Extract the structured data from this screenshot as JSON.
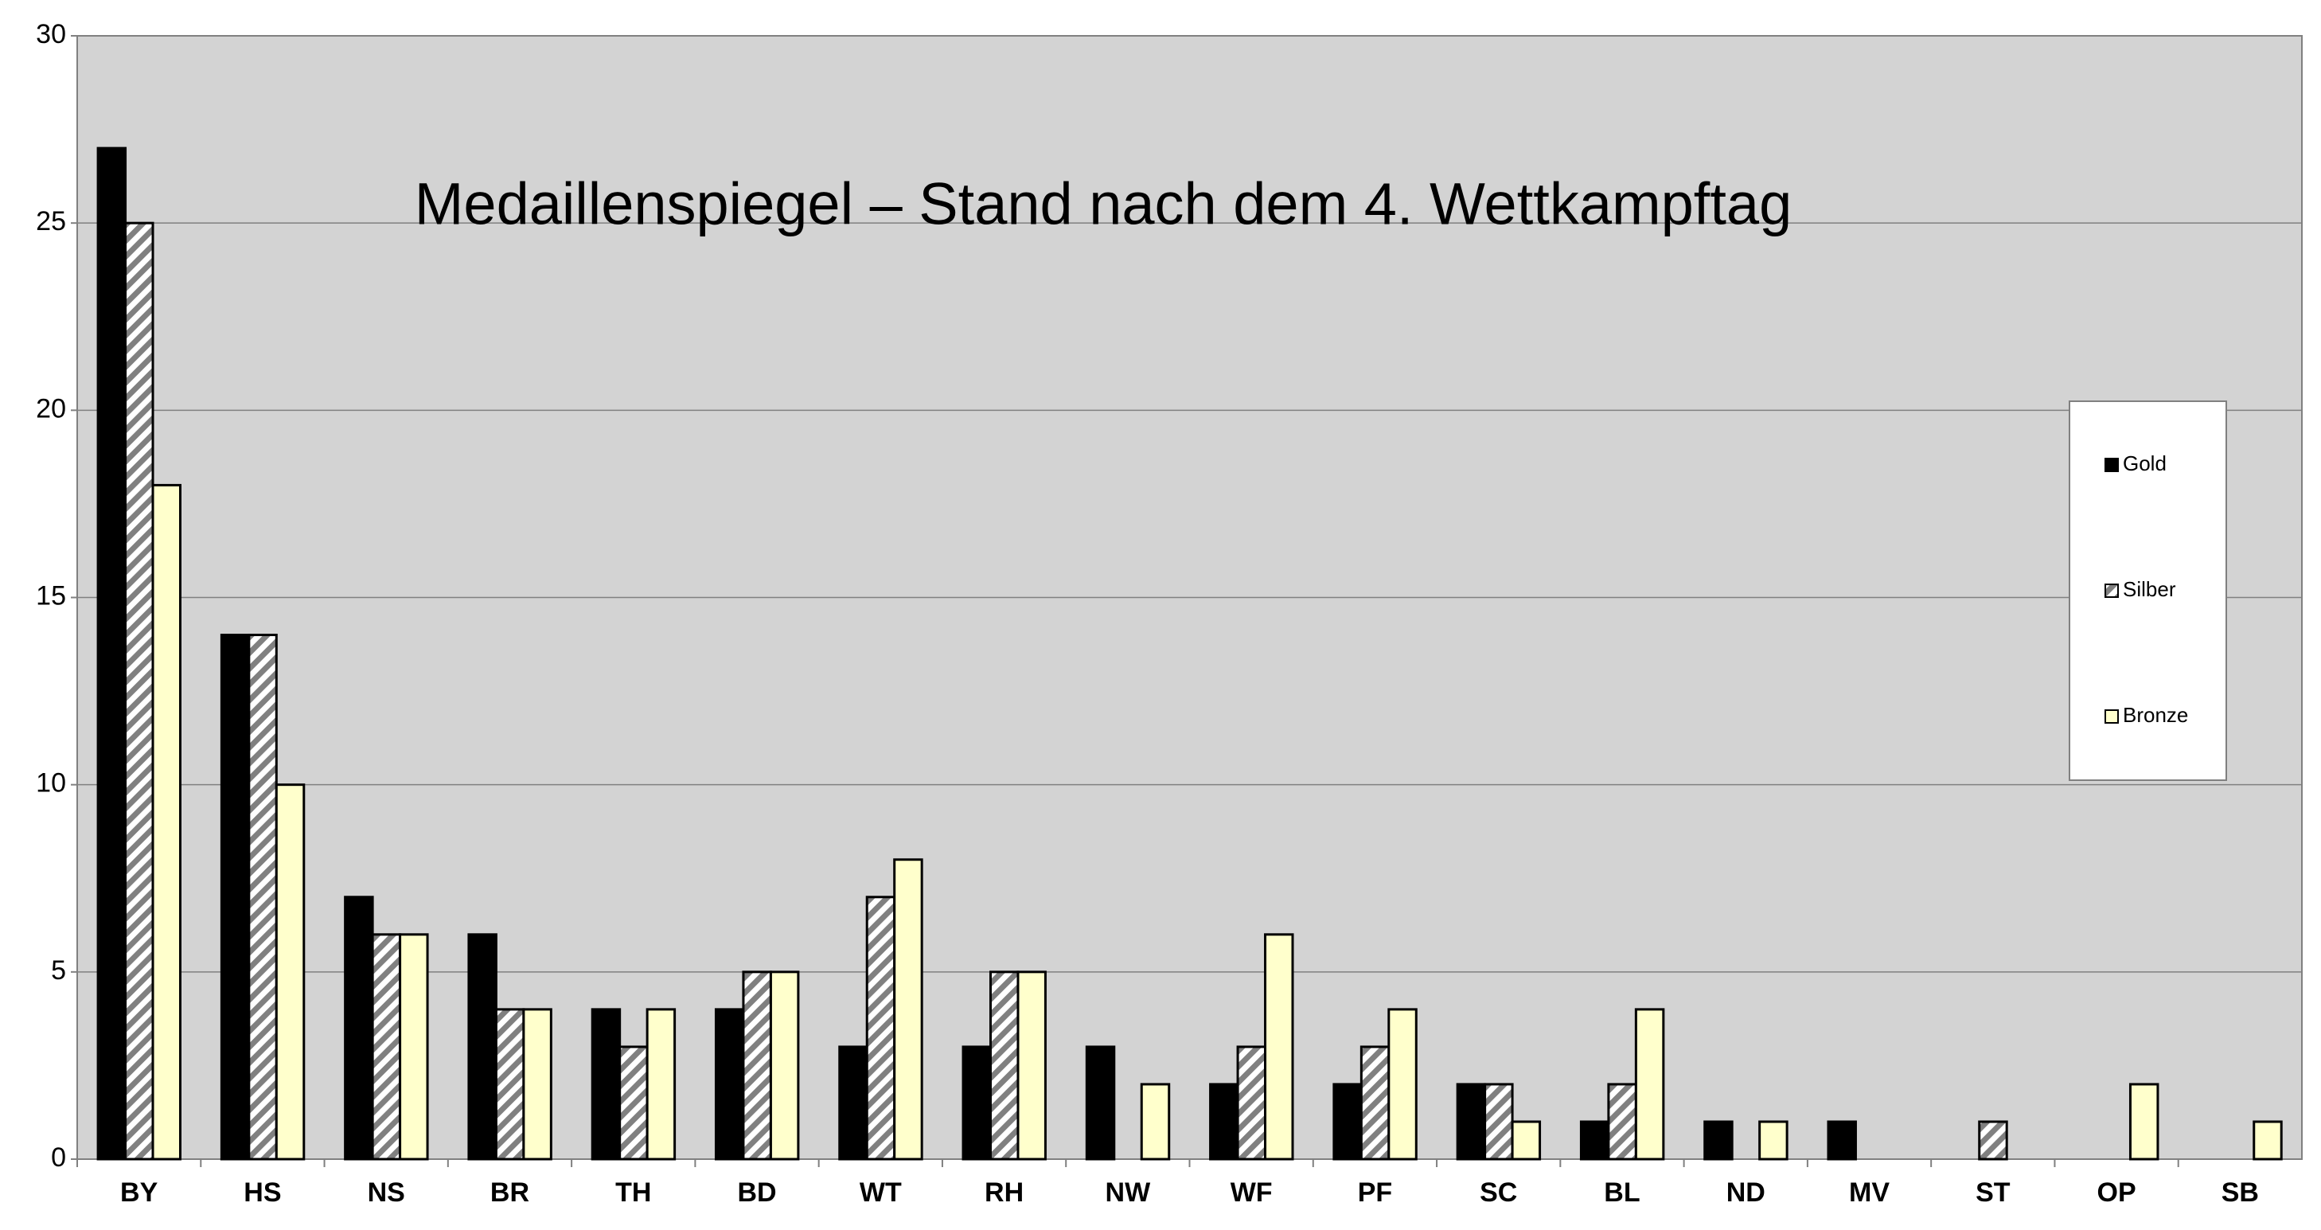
{
  "chart_data": {
    "type": "bar",
    "title": "Medaillenspiegel – Stand nach dem 4. Wettkampftag",
    "categories": [
      "BY",
      "HS",
      "NS",
      "BR",
      "TH",
      "BD",
      "WT",
      "RH",
      "NW",
      "WF",
      "PF",
      "SC",
      "BL",
      "ND",
      "MV",
      "ST",
      "OP",
      "SB"
    ],
    "series": [
      {
        "name": "Gold",
        "color": "#000000",
        "values": [
          27,
          14,
          7,
          6,
          4,
          4,
          3,
          3,
          3,
          2,
          2,
          2,
          1,
          1,
          1,
          0,
          0,
          0
        ]
      },
      {
        "name": "Silber",
        "color": "#808080",
        "values": [
          25,
          14,
          6,
          4,
          3,
          5,
          7,
          5,
          0,
          3,
          3,
          2,
          2,
          0,
          0,
          1,
          0,
          0
        ]
      },
      {
        "name": "Bronze",
        "color": "#ffffcc",
        "values": [
          18,
          10,
          6,
          4,
          4,
          5,
          8,
          5,
          2,
          6,
          4,
          1,
          4,
          1,
          0,
          0,
          2,
          1
        ]
      }
    ],
    "ylim": [
      0,
      30
    ],
    "yticks": [
      0,
      5,
      10,
      15,
      20,
      25,
      30
    ],
    "grid": true,
    "legend": "right"
  }
}
